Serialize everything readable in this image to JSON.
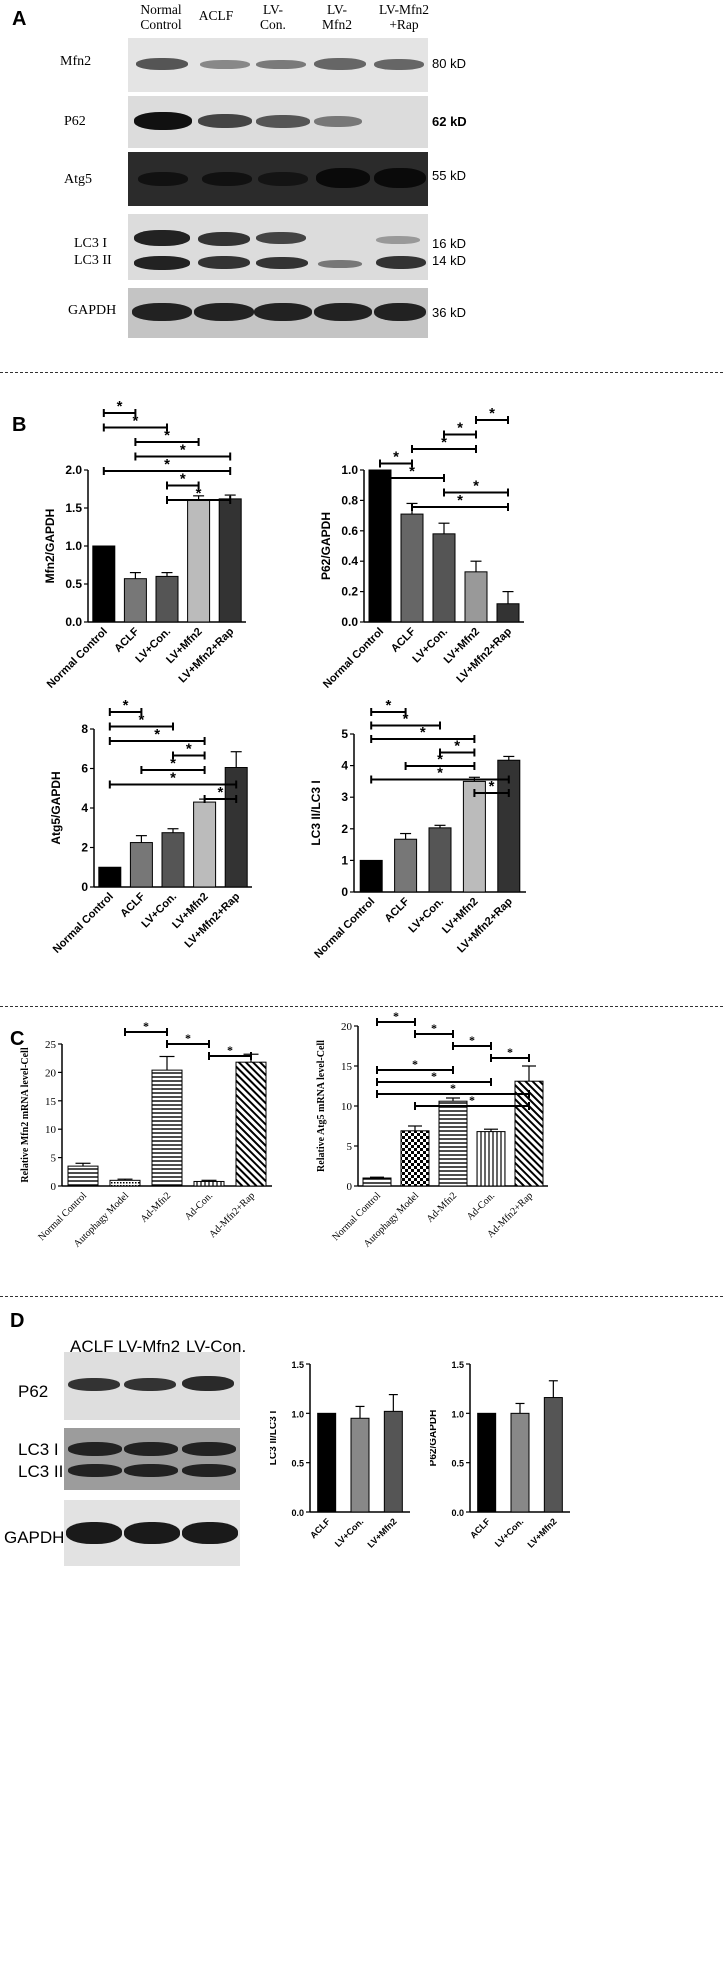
{
  "panels": {
    "a": "A",
    "b": "B",
    "c": "C",
    "d": "D"
  },
  "panel_a": {
    "lanes": [
      "Normal\nControl",
      "ACLF",
      "LV-\nCon.",
      "LV-\nMfn2",
      "LV-Mfn2\n+Rap"
    ],
    "blots": [
      {
        "label": "Mfn2",
        "kd": "80 kD"
      },
      {
        "label": "P62",
        "kd": "62 kD"
      },
      {
        "label": "Atg5",
        "kd": "55 kD"
      },
      {
        "label": "LC3 I",
        "label2": "LC3 II",
        "kd": "16 kD",
        "kd2": "14 kD"
      },
      {
        "label": "GAPDH",
        "kd": "36 kD"
      }
    ]
  },
  "panel_d": {
    "lanes": [
      "ACLF",
      "LV-Mfn2",
      "LV-Con."
    ],
    "blots": [
      {
        "label": "P62"
      },
      {
        "label": "LC3 I",
        "label2": "LC3 II"
      },
      {
        "label": "GAPDH"
      }
    ]
  },
  "chart_data": [
    {
      "id": "b1",
      "type": "bar",
      "ylabel": "Mfn2/GAPDH",
      "categories": [
        "Normal Control",
        "ACLF",
        "LV+Con.",
        "LV+Mfn2",
        "LV+Mfn2+Rap"
      ],
      "values": [
        1.0,
        0.57,
        0.6,
        1.6,
        1.62
      ],
      "errors": [
        0,
        0.08,
        0.05,
        0.06,
        0.05
      ],
      "ylim": [
        0,
        2.0
      ],
      "yticks": [
        "0.0",
        "0.5",
        "1.0",
        "1.5",
        "2.0"
      ],
      "colors": [
        "#000000",
        "#777777",
        "#555555",
        "#bbbbbb",
        "#333333"
      ],
      "sig": [
        {
          "from": 0,
          "to": 1,
          "label": "*"
        },
        {
          "from": 0,
          "to": 2,
          "label": "*"
        },
        {
          "from": 1,
          "to": 3,
          "label": "*"
        },
        {
          "from": 1,
          "to": 4,
          "label": "*"
        },
        {
          "from": 0,
          "to": 4,
          "label": "*"
        },
        {
          "from": 2,
          "to": 3,
          "label": "*"
        },
        {
          "from": 2,
          "to": 4,
          "label": "*"
        }
      ]
    },
    {
      "id": "b2",
      "type": "bar",
      "ylabel": "P62/GAPDH",
      "categories": [
        "Normal Control",
        "ACLF",
        "LV+Con.",
        "LV+Mfn2",
        "LV+Mfn2+Rap"
      ],
      "values": [
        1.0,
        0.71,
        0.58,
        0.33,
        0.12
      ],
      "errors": [
        0,
        0.07,
        0.07,
        0.07,
        0.08
      ],
      "ylim": [
        0,
        1.0
      ],
      "yticks": [
        "0.0",
        "0.2",
        "0.4",
        "0.6",
        "0.8",
        "1.0"
      ],
      "colors": [
        "#000000",
        "#666666",
        "#555555",
        "#999999",
        "#333333"
      ],
      "sig": [
        {
          "from": 3,
          "to": 4,
          "label": "*"
        },
        {
          "from": 2,
          "to": 3,
          "label": "*"
        },
        {
          "from": 1,
          "to": 3,
          "label": "*"
        },
        {
          "from": 0,
          "to": 1,
          "label": "*"
        },
        {
          "from": 0,
          "to": 2,
          "label": "*"
        },
        {
          "from": 2,
          "to": 4,
          "label": "*"
        },
        {
          "from": 1,
          "to": 4,
          "label": "*"
        }
      ]
    },
    {
      "id": "b3",
      "type": "bar",
      "ylabel": "Atg5/GAPDH",
      "categories": [
        "Normal Control",
        "ACLF",
        "LV+Con.",
        "LV+Mfn2",
        "LV+Mfn2+Rap"
      ],
      "values": [
        1.0,
        2.25,
        2.75,
        4.3,
        6.05
      ],
      "errors": [
        0,
        0.35,
        0.2,
        0.15,
        0.8
      ],
      "ylim": [
        0,
        8
      ],
      "yticks": [
        "0",
        "2",
        "4",
        "6",
        "8"
      ],
      "colors": [
        "#000000",
        "#777777",
        "#555555",
        "#bbbbbb",
        "#333333"
      ],
      "sig": [
        {
          "from": 0,
          "to": 1,
          "label": "*"
        },
        {
          "from": 0,
          "to": 2,
          "label": "*"
        },
        {
          "from": 0,
          "to": 3,
          "label": "*"
        },
        {
          "from": 2,
          "to": 3,
          "label": "*"
        },
        {
          "from": 1,
          "to": 3,
          "label": "*"
        },
        {
          "from": 0,
          "to": 4,
          "label": "*"
        },
        {
          "from": 3,
          "to": 4,
          "label": "*"
        }
      ]
    },
    {
      "id": "b4",
      "type": "bar",
      "ylabel": "LC3 II/LC3 I",
      "categories": [
        "Normal Control",
        "ACLF",
        "LV+Con.",
        "LV+Mfn2",
        "LV+Mfn2+Rap"
      ],
      "values": [
        1.0,
        1.67,
        2.03,
        3.5,
        4.17
      ],
      "errors": [
        0,
        0.18,
        0.08,
        0.13,
        0.12
      ],
      "ylim": [
        0,
        5
      ],
      "yticks": [
        "0",
        "1",
        "2",
        "3",
        "4",
        "5"
      ],
      "colors": [
        "#000000",
        "#777777",
        "#555555",
        "#bbbbbb",
        "#333333"
      ],
      "sig": [
        {
          "from": 0,
          "to": 1,
          "label": "*"
        },
        {
          "from": 0,
          "to": 2,
          "label": "*"
        },
        {
          "from": 0,
          "to": 3,
          "label": "*"
        },
        {
          "from": 2,
          "to": 3,
          "label": "*"
        },
        {
          "from": 1,
          "to": 3,
          "label": "*"
        },
        {
          "from": 0,
          "to": 4,
          "label": "*"
        },
        {
          "from": 3,
          "to": 4,
          "label": "*"
        }
      ]
    },
    {
      "id": "c1",
      "type": "bar",
      "ylabel": "Relative Mfn2 mRNA level-Cell",
      "categories": [
        "Normal Control",
        "Autophagy Model",
        "Ad-Mfn2",
        "Ad-Con.",
        "Ad-Mfn2+Rap"
      ],
      "values": [
        3.5,
        1.0,
        20.4,
        0.8,
        21.8
      ],
      "errors": [
        0.5,
        0.2,
        2.4,
        0.2,
        1.4
      ],
      "ylim": [
        0,
        25
      ],
      "yticks": [
        "0",
        "5",
        "10",
        "15",
        "20",
        "25"
      ],
      "patterns": [
        "hh",
        "dd",
        "hh",
        "vv",
        "diag"
      ],
      "sig": [
        {
          "from": 1,
          "to": 2,
          "label": "*"
        },
        {
          "from": 2,
          "to": 3,
          "label": "*"
        },
        {
          "from": 3,
          "to": 4,
          "label": "*"
        }
      ]
    },
    {
      "id": "c2",
      "type": "bar",
      "ylabel": "Relative Atg5 mRNA level-Cell",
      "categories": [
        "Normal Control",
        "Autophagy Model",
        "Ad-Mfn2",
        "Ad-Con.",
        "Ad-Mfn2+Rap"
      ],
      "values": [
        1.0,
        6.9,
        10.6,
        6.8,
        13.1
      ],
      "errors": [
        0.1,
        0.6,
        0.4,
        0.3,
        1.9
      ],
      "ylim": [
        0,
        20
      ],
      "yticks": [
        "0",
        "5",
        "10",
        "15",
        "20"
      ],
      "patterns": [
        "hh",
        "check",
        "hh",
        "vv",
        "diag"
      ],
      "sig": [
        {
          "from": 0,
          "to": 1,
          "label": "*"
        },
        {
          "from": 1,
          "to": 2,
          "label": "*"
        },
        {
          "from": 2,
          "to": 3,
          "label": "*"
        },
        {
          "from": 3,
          "to": 4,
          "label": "*"
        },
        {
          "from": 0,
          "to": 2,
          "label": "*"
        },
        {
          "from": 0,
          "to": 3,
          "label": "*"
        },
        {
          "from": 0,
          "to": 4,
          "label": "*"
        },
        {
          "from": 1,
          "to": 4,
          "label": "*"
        }
      ]
    },
    {
      "id": "d1",
      "type": "bar",
      "ylabel": "LC3 II/LC3 I",
      "categories": [
        "ACLF",
        "LV+Con.",
        "LV+Mfn2"
      ],
      "values": [
        1.0,
        0.95,
        1.02
      ],
      "errors": [
        0,
        0.12,
        0.17
      ],
      "ylim": [
        0,
        1.5
      ],
      "yticks": [
        "0.0",
        "0.5",
        "1.0",
        "1.5"
      ],
      "colors": [
        "#000000",
        "#888888",
        "#555555"
      ],
      "sig": []
    },
    {
      "id": "d2",
      "type": "bar",
      "ylabel": "P62/GAPDH",
      "categories": [
        "ACLF",
        "LV+Con.",
        "LV+Mfn2"
      ],
      "values": [
        1.0,
        1.0,
        1.16
      ],
      "errors": [
        0,
        0.1,
        0.17
      ],
      "ylim": [
        0,
        1.5
      ],
      "yticks": [
        "0.0",
        "0.5",
        "1.0",
        "1.5"
      ],
      "colors": [
        "#000000",
        "#888888",
        "#555555"
      ],
      "sig": []
    }
  ]
}
